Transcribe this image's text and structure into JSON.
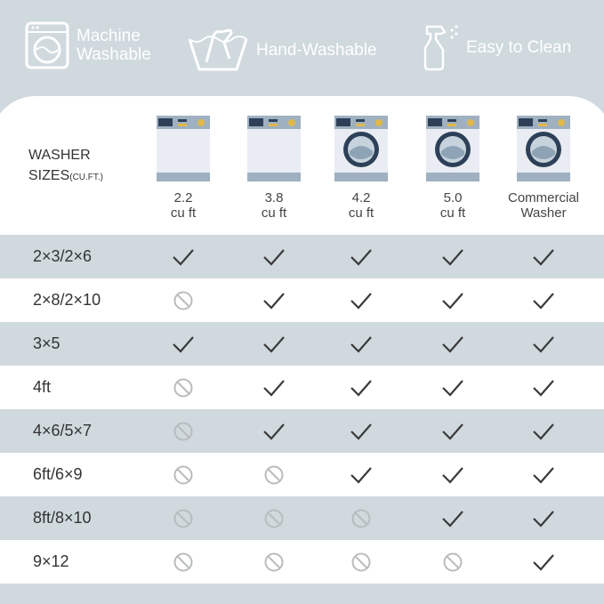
{
  "features": [
    {
      "icon": "washing-machine-icon",
      "label_lines": [
        "Machine",
        "Washable"
      ]
    },
    {
      "icon": "hand-wash-icon",
      "label_lines": [
        "Hand-Washable"
      ]
    },
    {
      "icon": "spray-bottle-icon",
      "label_lines": [
        "Easy to Clean"
      ]
    }
  ],
  "table": {
    "header_label": "WASHER",
    "header_label2": "SIZES",
    "header_unit": "(CU.FT.)",
    "columns": [
      {
        "lines": [
          "2.2",
          "cu ft"
        ],
        "type": "top-loader"
      },
      {
        "lines": [
          "3.8",
          "cu ft"
        ],
        "type": "top-loader"
      },
      {
        "lines": [
          "4.2",
          "cu ft"
        ],
        "type": "front-loader"
      },
      {
        "lines": [
          "5.0",
          "cu ft"
        ],
        "type": "front-loader"
      },
      {
        "lines": [
          "Commercial",
          "Washer"
        ],
        "type": "front-loader"
      }
    ],
    "rows": [
      {
        "size": "2×3/2×6",
        "fits": [
          true,
          true,
          true,
          true,
          true
        ]
      },
      {
        "size": "2×8/2×10",
        "fits": [
          false,
          true,
          true,
          true,
          true
        ]
      },
      {
        "size": "3×5",
        "fits": [
          true,
          true,
          true,
          true,
          true
        ]
      },
      {
        "size": "4ft",
        "fits": [
          false,
          true,
          true,
          true,
          true
        ]
      },
      {
        "size": "4×6/5×7",
        "fits": [
          false,
          true,
          true,
          true,
          true
        ]
      },
      {
        "size": "6ft/6×9",
        "fits": [
          false,
          false,
          true,
          true,
          true
        ]
      },
      {
        "size": "8ft/8×10",
        "fits": [
          false,
          false,
          false,
          true,
          true
        ]
      },
      {
        "size": "9×12",
        "fits": [
          false,
          false,
          false,
          false,
          true
        ]
      }
    ]
  },
  "colors": {
    "background": "#cfd9de",
    "check": "#3a3a3a",
    "not_allowed": "#b9bcbe"
  }
}
